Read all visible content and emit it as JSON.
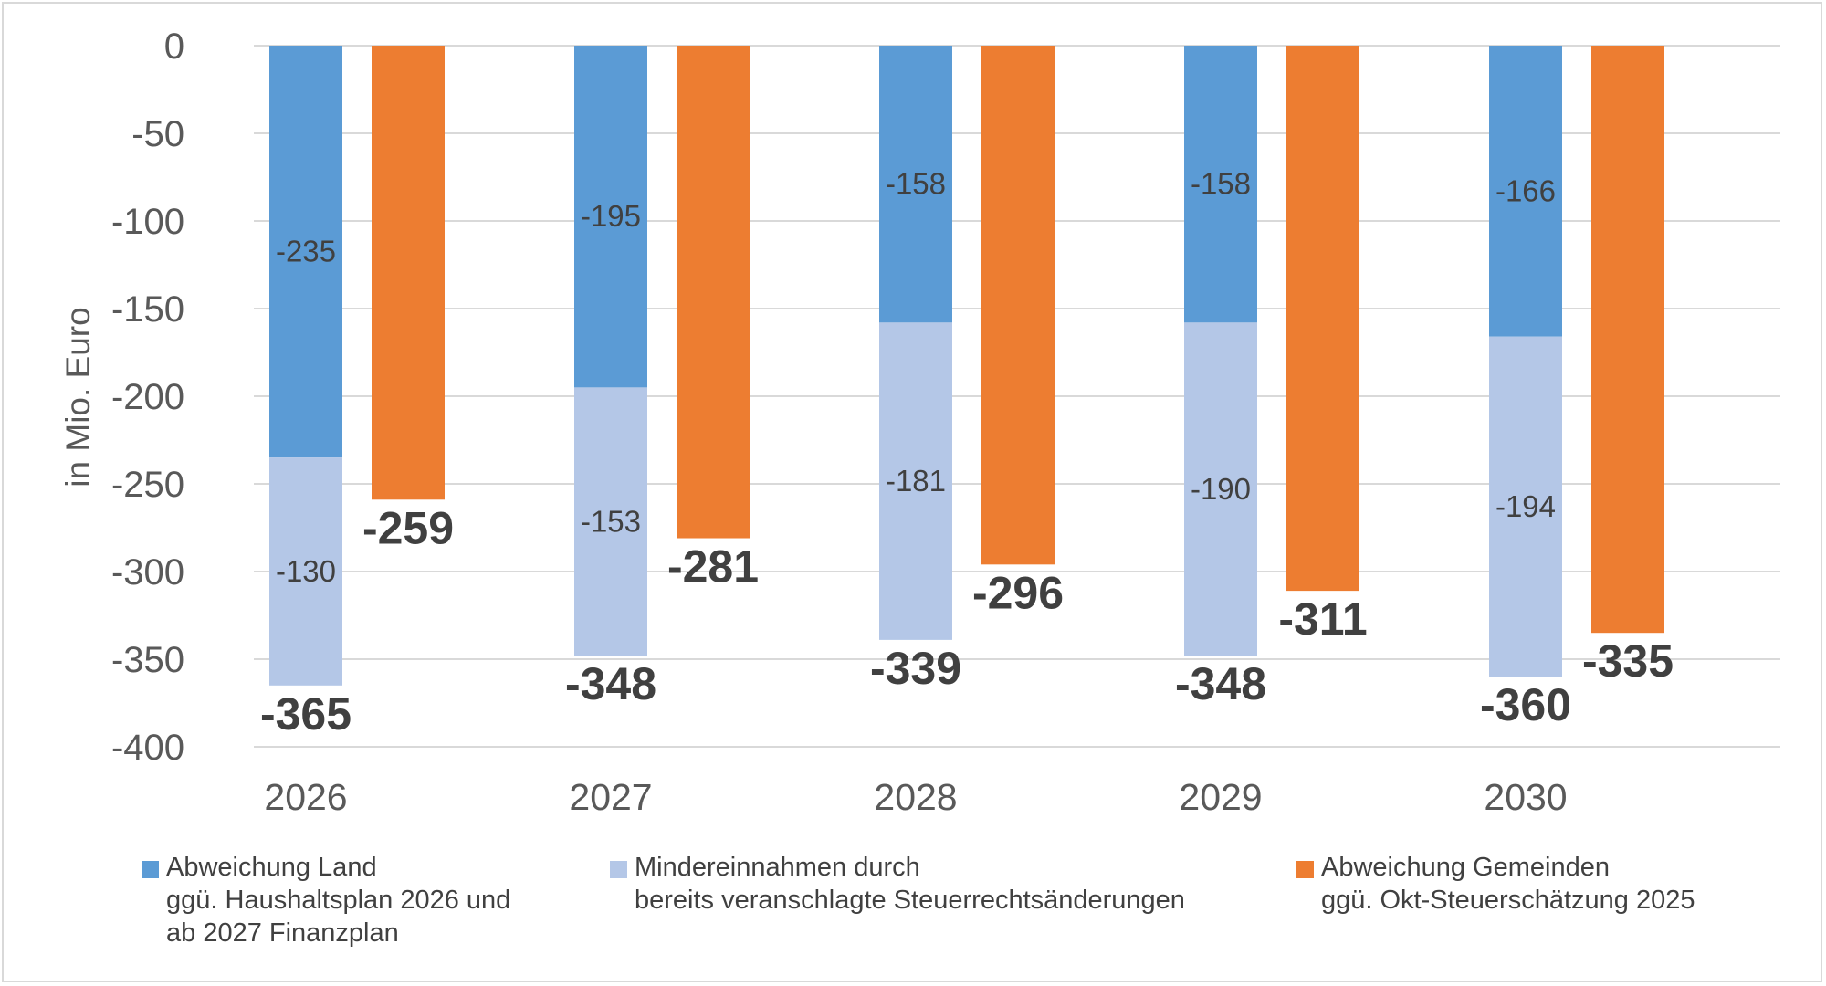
{
  "chart_data": {
    "type": "bar",
    "stacking": "Land series stacked, Gemeinden series clustered beside",
    "ylabel": "in Mio. Euro",
    "ylim": [
      -400,
      0
    ],
    "yticks": [
      0,
      -50,
      -100,
      -150,
      -200,
      -250,
      -300,
      -350,
      -400
    ],
    "ytick_labels": [
      "0",
      "-50",
      "-100",
      "-150",
      "-200",
      "-250",
      "-300",
      "-350",
      "-400"
    ],
    "grid": true,
    "legend_position": "bottom",
    "categories": [
      "2026",
      "2027",
      "2028",
      "2029",
      "2030"
    ],
    "series": [
      {
        "name": "Abweichung Land\nggü. Haushaltsplan 2026 und\nab 2027 Finanzplan",
        "color": "#5b9bd5",
        "stack": "land",
        "values": [
          -235,
          -195,
          -158,
          -158,
          -166
        ],
        "labels": [
          "-235",
          "-195",
          "-158",
          "-158",
          "-166"
        ]
      },
      {
        "name": "Mindereinnahmen durch\nbereits veranschlagte Steuerrechtsänderungen",
        "color": "#b4c7e7",
        "stack": "land",
        "values": [
          -130,
          -153,
          -181,
          -190,
          -194
        ],
        "labels": [
          "-130",
          "-153",
          "-181",
          "-190",
          "-194"
        ]
      },
      {
        "name": "Abweichung Gemeinden\nggü. Okt-Steuerschätzung 2025",
        "color": "#ed7d31",
        "stack": "gemeinden",
        "values": [
          -259,
          -281,
          -296,
          -311,
          -335
        ]
      }
    ],
    "totals": {
      "land": [
        -365,
        -348,
        -339,
        -348,
        -360
      ],
      "land_labels": [
        "-365",
        "-348",
        "-339",
        "-348",
        "-360"
      ],
      "gemeinden_labels": [
        "-259",
        "-281",
        "-296",
        "-311",
        "-335"
      ]
    },
    "colors": {
      "gridline": "#d9d9d9",
      "tick_text": "#595959",
      "label_text": "#404040"
    }
  }
}
